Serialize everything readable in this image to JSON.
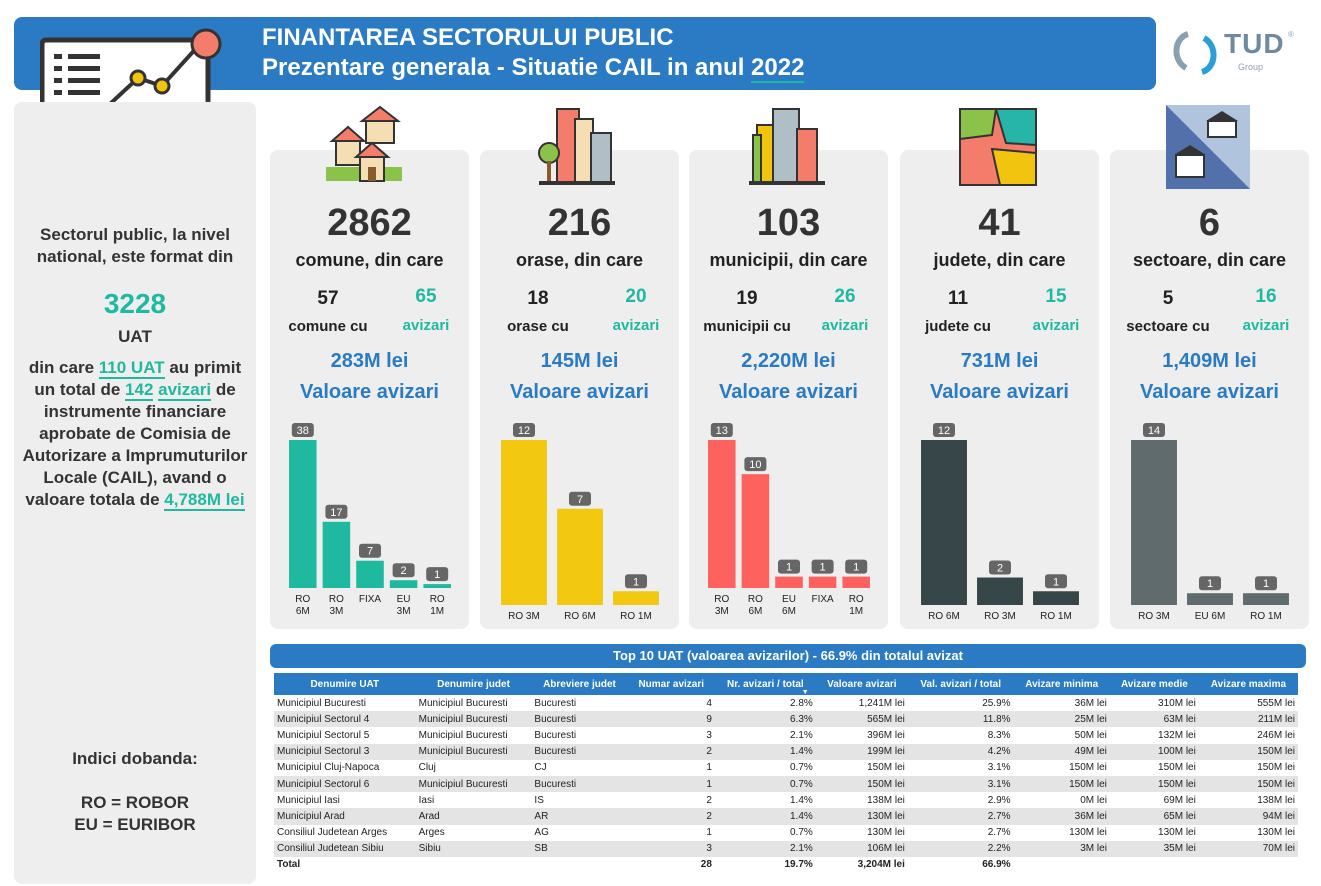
{
  "header": {
    "line1": "FINANTAREA SECTORULUI PUBLIC",
    "line2": "Prezentare generala - Situatie CAIL in anul",
    "year": "2022"
  },
  "logo": {
    "name": "TUD",
    "sub": "Group",
    "registered": "®"
  },
  "left": {
    "intro": "Sectorul public, la nivel national, este format din",
    "total": "3228",
    "unit": "UAT",
    "p1": "din care",
    "uat_count": "110 UAT",
    "p2": "au primit un total de",
    "avizari_count": "142",
    "avizari_word": "avizari",
    "p3": "de instrumente financiare aprobate de Comisia de Autorizare a Imprumuturilor Locale (CAIL), avand o valoare totala de",
    "total_value": "4,788M lei",
    "indici_title": "Indici dobanda:",
    "ro": "RO = ROBOR",
    "eu": "EU = EURIBOR"
  },
  "cards": [
    {
      "total": "2862",
      "label": "comune, din care",
      "a": "57",
      "a_label": "comune cu",
      "b": "65",
      "b_label": "avizari",
      "value": "283M lei",
      "value_label": "Valoare avizari"
    },
    {
      "total": "216",
      "label": "orase, din care",
      "a": "18",
      "a_label": "orase cu",
      "b": "20",
      "b_label": "avizari",
      "value": "145M lei",
      "value_label": "Valoare avizari"
    },
    {
      "total": "103",
      "label": "municipii, din care",
      "a": "19",
      "a_label": "municipii cu",
      "b": "26",
      "b_label": "avizari",
      "value": "2,220M lei",
      "value_label": "Valoare avizari"
    },
    {
      "total": "41",
      "label": "judete, din care",
      "a": "11",
      "a_label": "judete cu",
      "b": "15",
      "b_label": "avizari",
      "value": "731M lei",
      "value_label": "Valoare avizari"
    },
    {
      "total": "6",
      "label": "sectoare, din care",
      "a": "5",
      "a_label": "sectoare cu",
      "b": "16",
      "b_label": "avizari",
      "value": "1,409M lei",
      "value_label": "Valoare avizari"
    }
  ],
  "chart_data": [
    {
      "type": "bar",
      "title": "comune",
      "color": "#1fb9a0",
      "categories": [
        "RO 6M",
        "RO 3M",
        "FIXA",
        "EU 3M",
        "RO 1M"
      ],
      "values": [
        38,
        17,
        7,
        2,
        1
      ]
    },
    {
      "type": "bar",
      "title": "orase",
      "color": "#f2c811",
      "categories": [
        "RO 3M",
        "RO 6M",
        "RO 1M"
      ],
      "values": [
        12,
        7,
        1
      ]
    },
    {
      "type": "bar",
      "title": "municipii",
      "color": "#fd625e",
      "categories": [
        "RO 3M",
        "RO 6M",
        "EU 6M",
        "FIXA",
        "RO 1M"
      ],
      "values": [
        13,
        10,
        1,
        1,
        1
      ]
    },
    {
      "type": "bar",
      "title": "judete",
      "color": "#374649",
      "categories": [
        "RO 6M",
        "RO 3M",
        "RO 1M"
      ],
      "values": [
        12,
        2,
        1
      ]
    },
    {
      "type": "bar",
      "title": "sectoare",
      "color": "#5f6b6d",
      "categories": [
        "RO 3M",
        "EU 6M",
        "RO 1M"
      ],
      "values": [
        14,
        1,
        1
      ]
    }
  ],
  "table": {
    "banner": "Top 10 UAT (valoarea avizarilor) - 66.9% din totalul avizat",
    "headers": [
      "Denumire UAT",
      "Denumire judet",
      "Abreviere judet",
      "Numar avizari",
      "Nr. avizari / total",
      "Valoare avizari",
      "Val. avizari / total",
      "Avizare minima",
      "Avizare medie",
      "Avizare maxima"
    ],
    "rows": [
      [
        "Municipiul Bucuresti",
        "Municipiul Bucuresti",
        "Bucuresti",
        "4",
        "2.8%",
        "1,241M lei",
        "25.9%",
        "36M lei",
        "310M lei",
        "555M lei"
      ],
      [
        "Municipiul Sectorul 4",
        "Municipiul Bucuresti",
        "Bucuresti",
        "9",
        "6.3%",
        "565M lei",
        "11.8%",
        "25M lei",
        "63M lei",
        "211M lei"
      ],
      [
        "Municipiul Sectorul 5",
        "Municipiul Bucuresti",
        "Bucuresti",
        "3",
        "2.1%",
        "396M lei",
        "8.3%",
        "50M lei",
        "132M lei",
        "246M lei"
      ],
      [
        "Municipiul Sectorul 3",
        "Municipiul Bucuresti",
        "Bucuresti",
        "2",
        "1.4%",
        "199M lei",
        "4.2%",
        "49M lei",
        "100M lei",
        "150M lei"
      ],
      [
        "Municipiul Cluj-Napoca",
        "Cluj",
        "CJ",
        "1",
        "0.7%",
        "150M lei",
        "3.1%",
        "150M lei",
        "150M lei",
        "150M lei"
      ],
      [
        "Municipiul Sectorul 6",
        "Municipiul Bucuresti",
        "Bucuresti",
        "1",
        "0.7%",
        "150M lei",
        "3.1%",
        "150M lei",
        "150M lei",
        "150M lei"
      ],
      [
        "Municipiul Iasi",
        "Iasi",
        "IS",
        "2",
        "1.4%",
        "138M lei",
        "2.9%",
        "0M lei",
        "69M lei",
        "138M lei"
      ],
      [
        "Municipiul Arad",
        "Arad",
        "AR",
        "2",
        "1.4%",
        "130M lei",
        "2.7%",
        "36M lei",
        "65M lei",
        "94M lei"
      ],
      [
        "Consiliul Judetean Arges",
        "Arges",
        "AG",
        "1",
        "0.7%",
        "130M lei",
        "2.7%",
        "130M lei",
        "130M lei",
        "130M lei"
      ],
      [
        "Consiliul Judetean Sibiu",
        "Sibiu",
        "SB",
        "3",
        "2.1%",
        "106M lei",
        "2.2%",
        "3M lei",
        "35M lei",
        "70M lei"
      ]
    ],
    "total": [
      "Total",
      "",
      "",
      "28",
      "19.7%",
      "3,204M lei",
      "66.9%",
      "",
      "",
      ""
    ]
  }
}
